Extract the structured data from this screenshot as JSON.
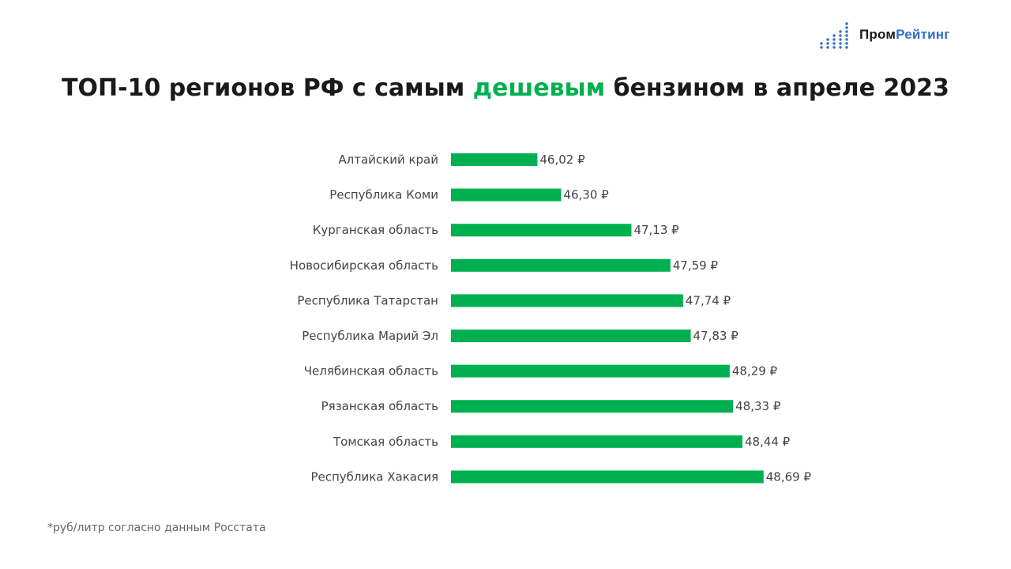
{
  "logo": {
    "part1": "Пром",
    "part2": "Рейтинг",
    "icon": "bar-dots-logo-icon"
  },
  "title": {
    "before": "ТОП-10 регионов РФ с самым ",
    "highlight": "дешевым",
    "after": " бензином в апреле 2023"
  },
  "footnote": "*руб/литр согласно данным Росстата",
  "colors": {
    "bar": "#00b050",
    "highlight": "#00b050",
    "logo_blue": "#2f6fc4"
  },
  "chart_data": {
    "type": "bar",
    "orientation": "horizontal",
    "title": "ТОП-10 регионов РФ с самым дешевым бензином в апреле 2023",
    "categories": [
      "Алтайский край",
      "Республика Коми",
      "Курганская область",
      "Новосибирская область",
      "Республика Татарстан",
      "Республика Марий Эл",
      "Челябинская область",
      "Рязанская область",
      "Томская область",
      "Республика Хакасия"
    ],
    "values": [
      46.02,
      46.3,
      47.13,
      47.59,
      47.74,
      47.83,
      48.29,
      48.33,
      48.44,
      48.69
    ],
    "value_labels": [
      "46,02 ₽",
      "46,30 ₽",
      "47,13 ₽",
      "47,59 ₽",
      "47,74 ₽",
      "47,83 ₽",
      "48,29 ₽",
      "48,33 ₽",
      "48,44 ₽",
      "48,69 ₽"
    ],
    "xlim": [
      45.0,
      49.0
    ],
    "grid": false,
    "legend": "none"
  }
}
